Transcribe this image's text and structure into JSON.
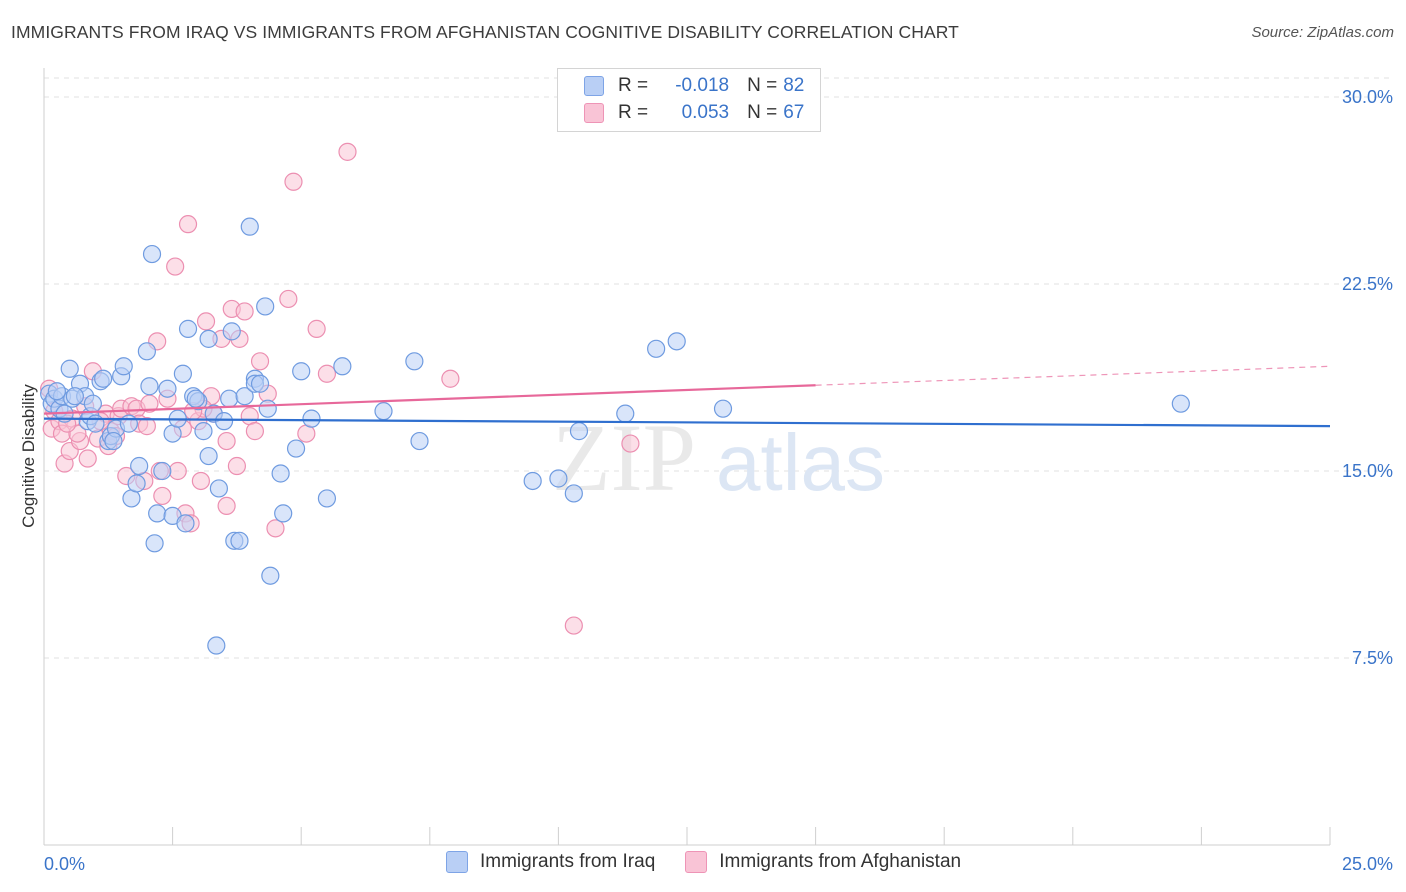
{
  "header": {
    "title": "IMMIGRANTS FROM IRAQ VS IMMIGRANTS FROM AFGHANISTAN COGNITIVE DISABILITY CORRELATION CHART",
    "source": "Source: ZipAtlas.com"
  },
  "watermark": {
    "zip": "ZIP",
    "atlas": "atlas"
  },
  "legend": {
    "r_label": "R =",
    "n_label": "N =",
    "iraq": {
      "r": "-0.018",
      "n": "82"
    },
    "afghanistan": {
      "r": "0.053",
      "n": "67"
    }
  },
  "colors": {
    "iraq_fill": "#b9cff5",
    "iraq_stroke": "#6f9be0",
    "iraq_line": "#2f6fcf",
    "afghanistan_fill": "#f9c4d6",
    "afghanistan_stroke": "#ec8fb1",
    "afghanistan_line": "#e7689a",
    "tick_label": "#3a74c9",
    "grid": "#e2e2e2"
  },
  "chart_data": {
    "type": "scatter",
    "title": "IMMIGRANTS FROM IRAQ VS IMMIGRANTS FROM AFGHANISTAN COGNITIVE DISABILITY CORRELATION CHART",
    "xlabel": "",
    "ylabel": "Cognitive Disability",
    "xlim": [
      0,
      25
    ],
    "ylim": [
      0,
      30
    ],
    "x_tick_labels": [
      "0.0%",
      "25.0%"
    ],
    "y_ticks": [
      7.5,
      15.0,
      22.5,
      30.0
    ],
    "y_tick_labels": [
      "7.5%",
      "15.0%",
      "22.5%",
      "30.0%"
    ],
    "grid": true,
    "legend_position": "top-center",
    "series": [
      {
        "name": "Immigrants from Iraq",
        "trend": {
          "x0": 0,
          "y0": 17.1,
          "x1": 25,
          "y1": 16.8,
          "solid_until": 25
        },
        "points": [
          [
            0.1,
            18.1
          ],
          [
            0.15,
            17.7
          ],
          [
            0.2,
            17.9
          ],
          [
            0.3,
            17.5
          ],
          [
            0.35,
            18.0
          ],
          [
            0.4,
            17.3
          ],
          [
            0.5,
            19.1
          ],
          [
            0.55,
            17.9
          ],
          [
            0.7,
            18.5
          ],
          [
            0.8,
            18.0
          ],
          [
            0.85,
            17.0
          ],
          [
            0.9,
            17.2
          ],
          [
            0.95,
            17.7
          ],
          [
            1.0,
            16.9
          ],
          [
            1.1,
            18.6
          ],
          [
            1.15,
            18.7
          ],
          [
            1.25,
            16.2
          ],
          [
            1.3,
            16.4
          ],
          [
            1.4,
            16.7
          ],
          [
            1.5,
            18.8
          ],
          [
            1.55,
            19.2
          ],
          [
            1.65,
            16.9
          ],
          [
            1.7,
            13.9
          ],
          [
            1.8,
            14.5
          ],
          [
            1.85,
            15.2
          ],
          [
            2.0,
            19.8
          ],
          [
            2.05,
            18.4
          ],
          [
            2.1,
            23.7
          ],
          [
            2.15,
            12.1
          ],
          [
            2.2,
            13.3
          ],
          [
            2.3,
            15.0
          ],
          [
            2.4,
            18.3
          ],
          [
            2.5,
            13.2
          ],
          [
            2.5,
            16.5
          ],
          [
            2.6,
            17.1
          ],
          [
            2.7,
            18.9
          ],
          [
            2.75,
            12.9
          ],
          [
            2.8,
            20.7
          ],
          [
            2.9,
            18.0
          ],
          [
            3.0,
            17.8
          ],
          [
            3.1,
            16.6
          ],
          [
            3.2,
            15.6
          ],
          [
            3.2,
            20.3
          ],
          [
            3.3,
            17.3
          ],
          [
            3.4,
            14.3
          ],
          [
            3.5,
            17.0
          ],
          [
            3.6,
            17.9
          ],
          [
            3.65,
            20.6
          ],
          [
            3.7,
            12.2
          ],
          [
            3.8,
            12.2
          ],
          [
            3.9,
            18.0
          ],
          [
            4.0,
            24.8
          ],
          [
            4.1,
            18.7
          ],
          [
            4.1,
            18.5
          ],
          [
            4.3,
            21.6
          ],
          [
            4.35,
            17.5
          ],
          [
            4.4,
            10.8
          ],
          [
            4.6,
            14.9
          ],
          [
            4.65,
            13.3
          ],
          [
            4.9,
            15.9
          ],
          [
            5.0,
            19.0
          ],
          [
            5.2,
            17.1
          ],
          [
            5.5,
            13.9
          ],
          [
            5.8,
            19.2
          ],
          [
            6.6,
            17.4
          ],
          [
            7.2,
            19.4
          ],
          [
            7.3,
            16.2
          ],
          [
            9.5,
            14.6
          ],
          [
            10.0,
            14.7
          ],
          [
            10.3,
            14.1
          ],
          [
            10.4,
            16.6
          ],
          [
            11.3,
            17.3
          ],
          [
            11.9,
            19.9
          ],
          [
            12.3,
            20.2
          ],
          [
            13.2,
            17.5
          ],
          [
            22.1,
            17.7
          ],
          [
            3.35,
            8.0
          ],
          [
            0.25,
            18.2
          ],
          [
            0.6,
            18.0
          ],
          [
            1.35,
            16.2
          ],
          [
            2.95,
            17.9
          ],
          [
            4.2,
            18.5
          ]
        ]
      },
      {
        "name": "Immigrants from Afghanistan",
        "trend": {
          "x0": 0,
          "y0": 17.3,
          "x1": 25,
          "y1": 19.2,
          "solid_until": 15
        },
        "points": [
          [
            0.1,
            18.3
          ],
          [
            0.15,
            16.7
          ],
          [
            0.2,
            17.4
          ],
          [
            0.3,
            17.0
          ],
          [
            0.35,
            16.5
          ],
          [
            0.4,
            15.3
          ],
          [
            0.5,
            15.8
          ],
          [
            0.55,
            17.1
          ],
          [
            0.7,
            16.2
          ],
          [
            0.8,
            17.6
          ],
          [
            0.85,
            15.5
          ],
          [
            0.95,
            19.0
          ],
          [
            1.05,
            16.3
          ],
          [
            1.2,
            17.3
          ],
          [
            1.25,
            16.0
          ],
          [
            1.3,
            16.6
          ],
          [
            1.45,
            17.2
          ],
          [
            1.5,
            17.5
          ],
          [
            1.6,
            14.8
          ],
          [
            1.7,
            17.6
          ],
          [
            1.8,
            17.5
          ],
          [
            1.85,
            16.9
          ],
          [
            2.0,
            16.8
          ],
          [
            2.05,
            17.7
          ],
          [
            2.2,
            20.2
          ],
          [
            2.3,
            14.0
          ],
          [
            2.4,
            17.9
          ],
          [
            2.55,
            23.2
          ],
          [
            2.6,
            15.0
          ],
          [
            2.7,
            16.7
          ],
          [
            2.75,
            13.3
          ],
          [
            2.8,
            24.9
          ],
          [
            2.85,
            12.9
          ],
          [
            3.0,
            17.0
          ],
          [
            3.05,
            14.6
          ],
          [
            3.15,
            21.0
          ],
          [
            3.25,
            18.0
          ],
          [
            3.3,
            17.3
          ],
          [
            3.45,
            20.3
          ],
          [
            3.55,
            13.6
          ],
          [
            3.65,
            21.5
          ],
          [
            3.75,
            15.2
          ],
          [
            3.8,
            20.3
          ],
          [
            3.9,
            21.4
          ],
          [
            4.0,
            17.2
          ],
          [
            4.1,
            16.6
          ],
          [
            4.2,
            19.4
          ],
          [
            4.35,
            18.1
          ],
          [
            4.75,
            21.9
          ],
          [
            4.85,
            26.6
          ],
          [
            5.1,
            16.5
          ],
          [
            5.3,
            20.7
          ],
          [
            5.5,
            18.9
          ],
          [
            5.9,
            27.8
          ],
          [
            7.9,
            18.7
          ],
          [
            10.3,
            8.8
          ],
          [
            11.4,
            16.1
          ],
          [
            0.65,
            16.5
          ],
          [
            1.1,
            17.0
          ],
          [
            1.4,
            16.4
          ],
          [
            2.25,
            15.0
          ],
          [
            3.1,
            17.5
          ],
          [
            4.5,
            12.7
          ],
          [
            2.9,
            17.4
          ],
          [
            1.95,
            14.6
          ],
          [
            0.45,
            16.9
          ],
          [
            3.55,
            16.2
          ]
        ]
      }
    ]
  },
  "bottom_legend": {
    "iraq_label": "Immigrants from Iraq",
    "afghanistan_label": "Immigrants from Afghanistan"
  }
}
